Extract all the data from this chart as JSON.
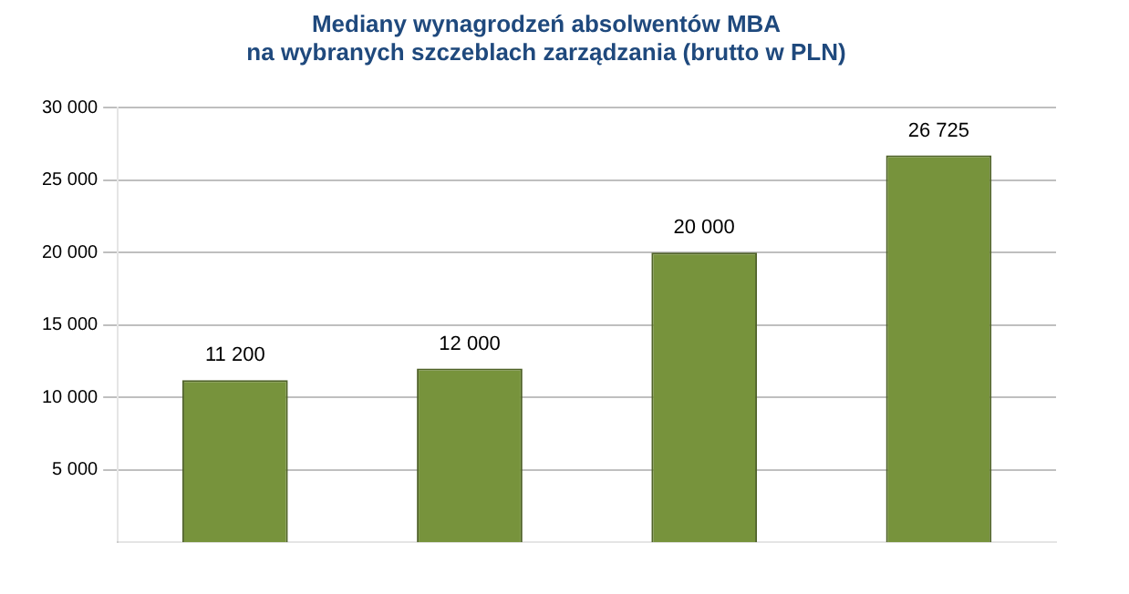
{
  "chart_data": {
    "type": "bar",
    "title": "Mediany wynagrodzeń absolwentów MBA\nna wybranych szczeblach zarządzania (brutto w PLN)",
    "categories": [
      null,
      null,
      null,
      null
    ],
    "values": [
      11200,
      12000,
      20000,
      26725
    ],
    "value_labels": [
      "11 200",
      "12 000",
      "20 000",
      "26 725"
    ],
    "color": "#77933c",
    "ylim": [
      0,
      30000
    ],
    "yticks": [
      {
        "value": 5000,
        "label": "5 000"
      },
      {
        "value": 10000,
        "label": "10 000"
      },
      {
        "value": 15000,
        "label": "15 000"
      },
      {
        "value": 20000,
        "label": "20 000"
      },
      {
        "value": 25000,
        "label": "25 000"
      },
      {
        "value": 30000,
        "label": "30 000"
      }
    ],
    "grid": "y"
  }
}
